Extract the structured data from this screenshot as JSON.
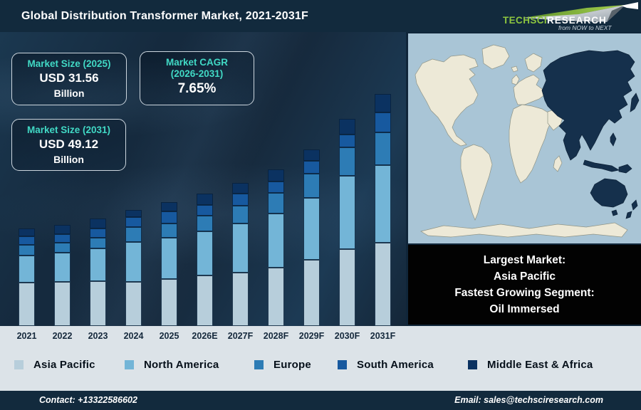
{
  "header": {
    "title": "Global Distribution Transformer Market, 2021-2031F",
    "logo": {
      "brand_primary": "TechSci",
      "brand_secondary": "Research",
      "tagline": "from NOW to NEXT",
      "brand_green": "#8dc63f"
    }
  },
  "info_boxes": [
    {
      "label": "Market Size (2025)",
      "value": "USD 31.56",
      "unit": "Billion"
    },
    {
      "label": "Market CAGR",
      "label2": "(2026-2031)",
      "value": "7.65%"
    },
    {
      "label": "Market Size (2031)",
      "value": "USD 49.12",
      "unit": "Billion"
    }
  ],
  "chart_data": {
    "type": "bar",
    "stacked": true,
    "title": "Global Distribution Transformer Market, 2021-2031F",
    "xlabel": "",
    "ylabel": "",
    "value_axis_visible": false,
    "grid": false,
    "legend_position": "bottom",
    "unit_note": "no value axis shown; values are relative stacked-segment heights (px), bottom-to-top series order",
    "categories": [
      "2021",
      "2022",
      "2023",
      "2024",
      "2025",
      "2026E",
      "2027F",
      "2028F",
      "2029F",
      "2030F",
      "2031F"
    ],
    "series": [
      {
        "name": "Asia Pacific",
        "color": "#b7cedb",
        "values": [
          61,
          62,
          63,
          62,
          66,
          71,
          75,
          82,
          93,
          108,
          117
        ]
      },
      {
        "name": "North America",
        "color": "#73b5d7",
        "values": [
          38,
          41,
          46,
          56,
          58,
          62,
          69,
          76,
          87,
          103,
          109
        ]
      },
      {
        "name": "Europe",
        "color": "#2d7cb5",
        "values": [
          15,
          14,
          15,
          21,
          20,
          22,
          25,
          29,
          34,
          40,
          46
        ]
      },
      {
        "name": "South America",
        "color": "#17599f",
        "values": [
          12,
          12,
          13,
          14,
          17,
          15,
          17,
          16,
          18,
          18,
          28
        ]
      },
      {
        "name": "Middle East & Africa",
        "color": "#0b3261",
        "values": [
          11,
          13,
          14,
          10,
          13,
          16,
          15,
          17,
          16,
          22,
          26
        ]
      }
    ],
    "annotations": {
      "market_size_2025": "USD 31.56 Billion",
      "market_size_2031": "USD 49.12 Billion",
      "cagr_2026_2031": "7.65%"
    }
  },
  "map": {
    "highlighted_region": "Asia Pacific",
    "ocean_color": "#a9c5d6",
    "land_color": "#ede9d7",
    "highlight_color": "#15304c"
  },
  "callout": {
    "lines": [
      "Largest Market:",
      "Asia Pacific",
      "Fastest Growing Segment:",
      "Oil Immersed"
    ]
  },
  "footer": {
    "contact": "Contact: +13322586602",
    "email": "Email: sales@techsciresearch.com"
  }
}
